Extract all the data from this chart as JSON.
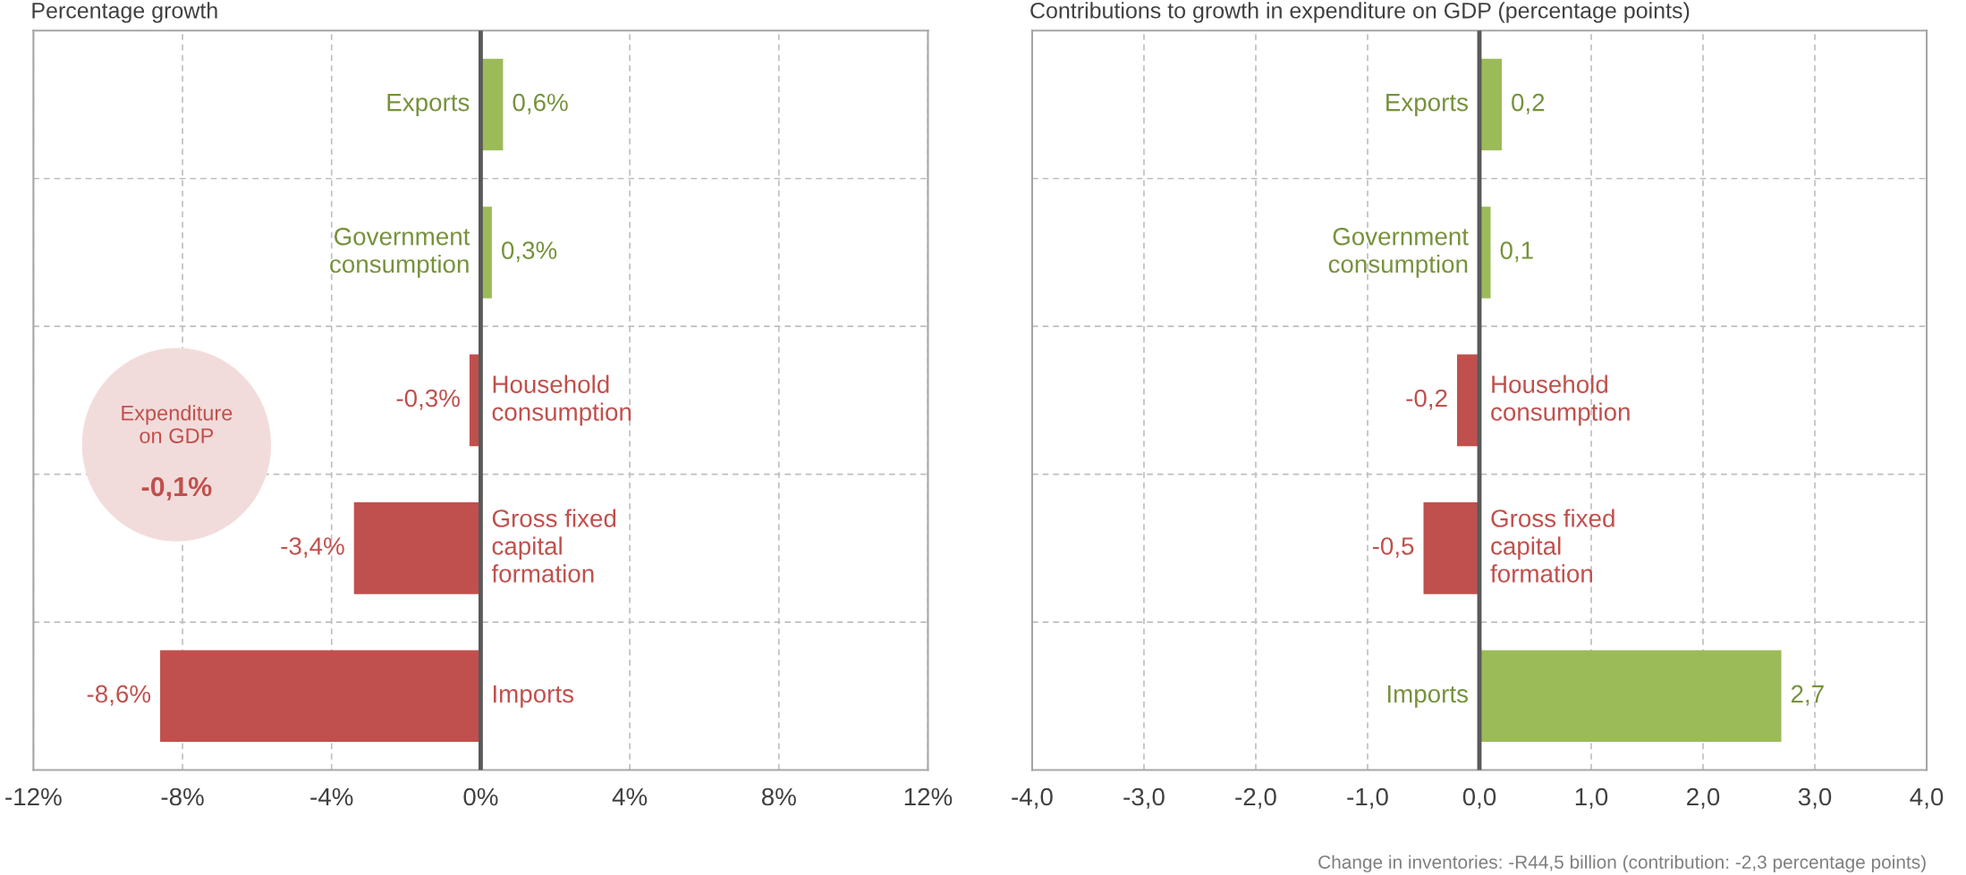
{
  "chart_data": [
    {
      "type": "bar",
      "orientation": "horizontal",
      "title": "Percentage growth",
      "categories": [
        "Exports",
        "Government consumption",
        "Household consumption",
        "Gross fixed capital formation",
        "Imports"
      ],
      "values": [
        0.6,
        0.3,
        -0.3,
        -3.4,
        -8.6
      ],
      "colors": [
        "#9bbb59",
        "#9bbb59",
        "#c0504d",
        "#c0504d",
        "#c0504d"
      ],
      "value_labels": [
        "0,6%",
        "0,3%",
        "-0,3%",
        "-3,4%",
        "-8,6%"
      ],
      "xlim": [
        -12,
        12
      ],
      "xticks": [
        {
          "value": -12,
          "label": "-12%"
        },
        {
          "value": -8,
          "label": "-8%"
        },
        {
          "value": -4,
          "label": "-4%"
        },
        {
          "value": 0,
          "label": "0%"
        },
        {
          "value": 4,
          "label": "4%"
        },
        {
          "value": 8,
          "label": "8%"
        },
        {
          "value": 12,
          "label": "12%"
        }
      ],
      "tick_labels": "x",
      "grid": true,
      "ref_lines": [
        {
          "axis": "x",
          "value": 0,
          "color": "#595959"
        }
      ],
      "annotations": [
        "Expenditure\non GDP\n-0,1%"
      ]
    },
    {
      "type": "bar",
      "orientation": "horizontal",
      "title": "Contributions to growth in expenditure on GDP (percentage points)",
      "categories": [
        "Exports",
        "Government consumption",
        "Household consumption",
        "Gross fixed capital formation",
        "Imports"
      ],
      "values": [
        0.2,
        0.1,
        -0.2,
        -0.5,
        2.7
      ],
      "colors": [
        "#9bbb59",
        "#9bbb59",
        "#c0504d",
        "#c0504d",
        "#9bbb59"
      ],
      "value_labels": [
        "0,2",
        "0,1",
        "-0,2",
        "-0,5",
        "2,7"
      ],
      "xlim": [
        -4,
        4
      ],
      "xticks": [
        {
          "value": -4,
          "label": "-4,0"
        },
        {
          "value": -3,
          "label": "-3,0"
        },
        {
          "value": -2,
          "label": "-2,0"
        },
        {
          "value": -1,
          "label": "-1,0"
        },
        {
          "value": 0,
          "label": "0,0"
        },
        {
          "value": 1,
          "label": "1,0"
        },
        {
          "value": 2,
          "label": "2,0"
        },
        {
          "value": 3,
          "label": "3,0"
        },
        {
          "value": 4,
          "label": "4,0"
        }
      ],
      "tick_labels": "x",
      "grid": true,
      "ref_lines": [
        {
          "axis": "x",
          "value": 0,
          "color": "#595959"
        }
      ],
      "annotations": [
        "Change in inventories: -R44,5 billion (contribution: -2,3 percentage points)"
      ]
    }
  ]
}
